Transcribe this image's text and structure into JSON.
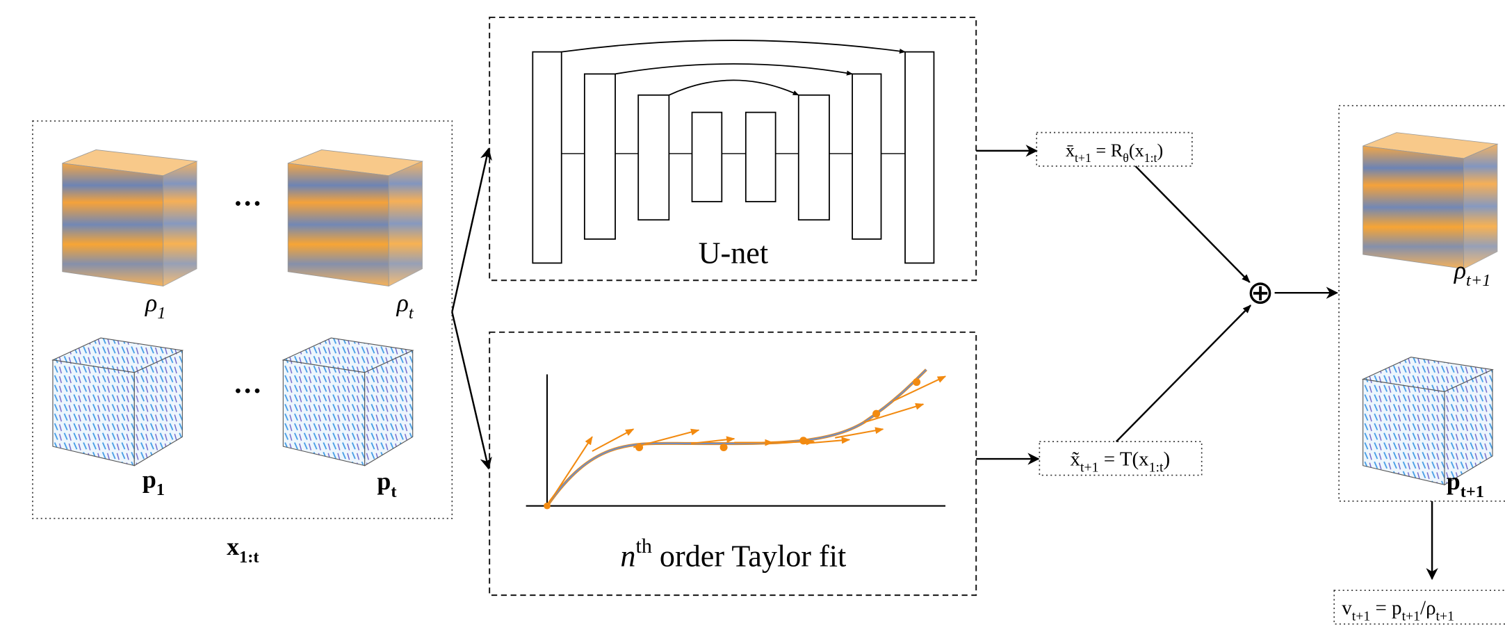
{
  "inputs": {
    "density_labels": [
      [
        "ρ",
        "1"
      ],
      [
        "ρ",
        "t"
      ]
    ],
    "momentum_labels": [
      [
        "p",
        "1"
      ],
      [
        "p",
        "t"
      ]
    ],
    "ellipsis": [
      "···",
      "···"
    ],
    "group_label": [
      "x",
      "1:t"
    ]
  },
  "unet": {
    "label": "U-net"
  },
  "taylor": {
    "label": [
      "n",
      "th",
      " order Taylor fit"
    ]
  },
  "residual_eq": [
    "x̄",
    "t+1",
    " = R",
    "θ",
    "(x",
    "1:t",
    ")"
  ],
  "taylor_eq": [
    "x̃",
    "t+1",
    " = T(x",
    "1:t",
    ")"
  ],
  "sum_symbol": "⊕",
  "outputs": {
    "density_label": [
      "ρ",
      "t+1"
    ],
    "momentum_label": [
      "p",
      "t+1"
    ],
    "velocity_eq": [
      "v",
      "t+1",
      " = p",
      "t+1",
      "/ρ",
      "t+1"
    ]
  }
}
